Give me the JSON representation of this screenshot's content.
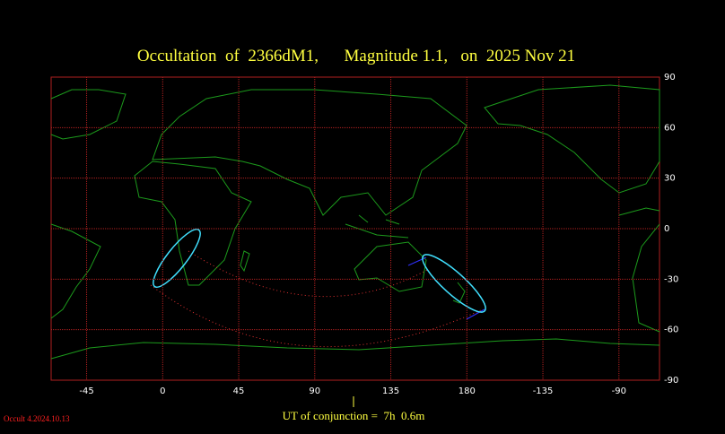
{
  "title": "Occultation  of  2366dM1,      Magnitude 1.1,   on  2025 Nov 21",
  "map": {
    "lon_ticks": [
      -45,
      0,
      45,
      90,
      135,
      180,
      -135,
      -90
    ],
    "lat_ticks": [
      90,
      60,
      30,
      0,
      -30,
      -60,
      -90
    ]
  },
  "conjunction": "UT of conjunction =  7h  0.6m",
  "version": "Occult 4.2024.10.13"
}
